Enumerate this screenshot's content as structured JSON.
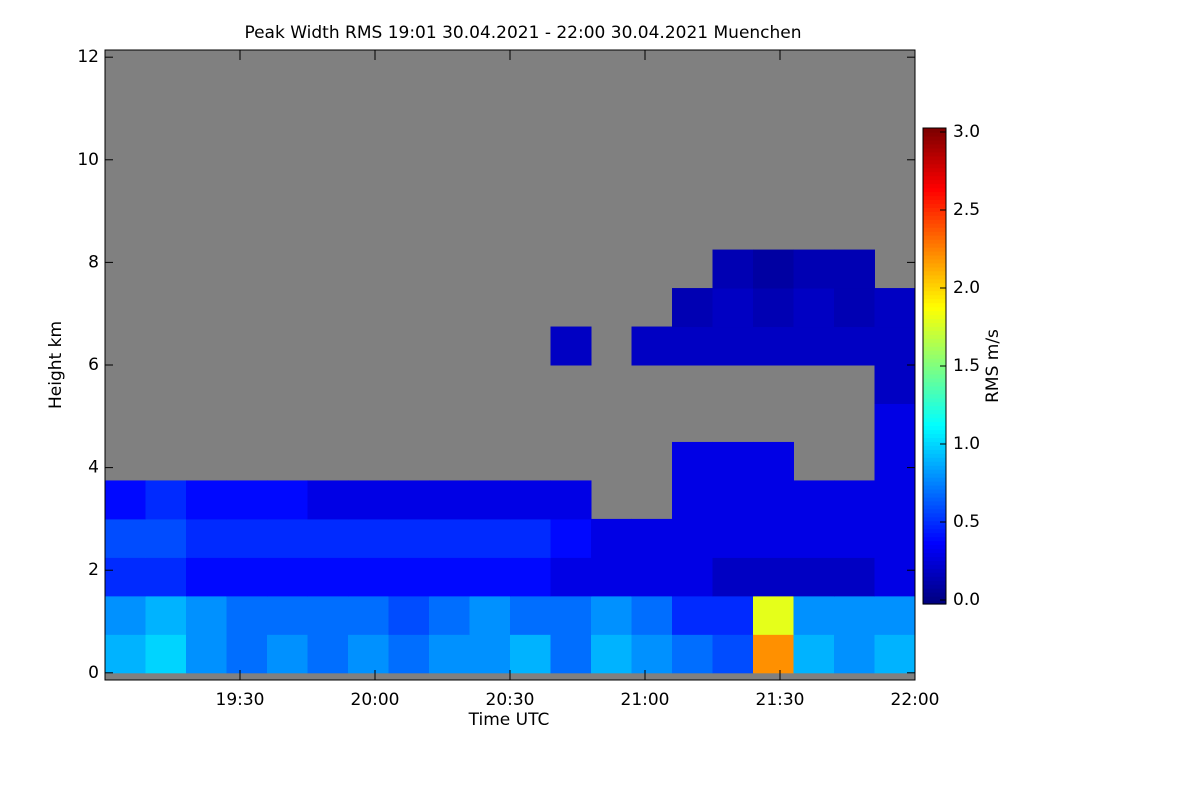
{
  "chart_data": {
    "type": "heatmap",
    "title": "Peak Width RMS   19:01 30.04.2021 - 22:00 30.04.2021 Muenchen",
    "x_label": "Time UTC",
    "y_label": "Height km",
    "colorbar_label": "RMS m/s",
    "colormap": "jet",
    "missing_color": "#808080",
    "x": [
      19.075,
      19.225,
      19.375,
      19.525,
      19.675,
      19.825,
      19.975,
      20.125,
      20.275,
      20.425,
      20.575,
      20.725,
      20.875,
      21.025,
      21.175,
      21.325,
      21.475,
      21.625,
      21.775,
      21.925
    ],
    "y": [
      0.375,
      1.125,
      1.875,
      2.625,
      3.375,
      4.125,
      4.875,
      5.625,
      6.375,
      7.125,
      7.875
    ],
    "values": [
      [
        0.9,
        1.0,
        0.8,
        0.7,
        0.8,
        0.7,
        0.8,
        0.7,
        0.8,
        0.8,
        0.9,
        0.7,
        0.9,
        0.8,
        0.7,
        0.6,
        2.2,
        0.9,
        0.8,
        0.9
      ],
      [
        0.8,
        0.9,
        0.8,
        0.7,
        0.7,
        0.7,
        0.7,
        0.6,
        0.7,
        0.8,
        0.7,
        0.7,
        0.8,
        0.7,
        0.5,
        0.5,
        1.8,
        0.8,
        0.8,
        0.8
      ],
      [
        0.5,
        0.5,
        0.4,
        0.4,
        0.4,
        0.4,
        0.4,
        0.4,
        0.4,
        0.4,
        0.4,
        0.3,
        0.3,
        0.3,
        0.3,
        0.2,
        0.2,
        0.2,
        0.2,
        0.3
      ],
      [
        0.6,
        0.6,
        0.5,
        0.5,
        0.5,
        0.5,
        0.5,
        0.5,
        0.5,
        0.5,
        0.5,
        0.4,
        0.3,
        0.3,
        0.3,
        0.3,
        0.3,
        0.3,
        0.3,
        0.3
      ],
      [
        0.4,
        0.5,
        0.4,
        0.4,
        0.4,
        0.3,
        0.3,
        0.3,
        0.3,
        0.3,
        0.3,
        0.3,
        null,
        null,
        0.3,
        0.3,
        0.3,
        0.3,
        0.3,
        0.3
      ],
      [
        null,
        null,
        null,
        null,
        null,
        null,
        null,
        null,
        null,
        null,
        null,
        null,
        null,
        null,
        0.3,
        0.3,
        0.3,
        null,
        null,
        0.3
      ],
      [
        null,
        null,
        null,
        null,
        null,
        null,
        null,
        null,
        null,
        null,
        null,
        null,
        null,
        null,
        null,
        null,
        null,
        null,
        null,
        0.3
      ],
      [
        null,
        null,
        null,
        null,
        null,
        null,
        null,
        null,
        null,
        null,
        null,
        null,
        null,
        null,
        null,
        null,
        null,
        null,
        null,
        0.2
      ],
      [
        null,
        null,
        null,
        null,
        null,
        null,
        null,
        null,
        null,
        null,
        null,
        0.2,
        null,
        0.2,
        0.2,
        0.2,
        0.2,
        0.2,
        0.2,
        0.2
      ],
      [
        null,
        null,
        null,
        null,
        null,
        null,
        null,
        null,
        null,
        null,
        null,
        null,
        null,
        null,
        0.15,
        0.2,
        0.15,
        0.2,
        0.15,
        0.2
      ],
      [
        null,
        null,
        null,
        null,
        null,
        null,
        null,
        null,
        null,
        null,
        null,
        null,
        null,
        null,
        null,
        0.15,
        0.1,
        0.15,
        0.15,
        null
      ]
    ],
    "xlim": [
      19.0,
      22.0
    ],
    "xticks": [
      {
        "value": 19.5,
        "label": "19:30"
      },
      {
        "value": 20.0,
        "label": "20:00"
      },
      {
        "value": 20.5,
        "label": "20:30"
      },
      {
        "value": 21.0,
        "label": "21:00"
      },
      {
        "value": 21.5,
        "label": "21:30"
      },
      {
        "value": 22.0,
        "label": "22:00"
      }
    ],
    "ylim": [
      -0.14,
      12.14
    ],
    "yticks": [
      0,
      2,
      4,
      6,
      8,
      10,
      12
    ],
    "zlim": [
      0,
      3
    ],
    "zticks": [
      {
        "value": 0,
        "label": "0.0"
      },
      {
        "value": 0.5,
        "label": "0.5"
      },
      {
        "value": 1,
        "label": "1.0"
      },
      {
        "value": 1.5,
        "label": "1.5"
      },
      {
        "value": 2,
        "label": "2.0"
      },
      {
        "value": 2.5,
        "label": "2.5"
      },
      {
        "value": 3,
        "label": "3.0"
      }
    ]
  }
}
